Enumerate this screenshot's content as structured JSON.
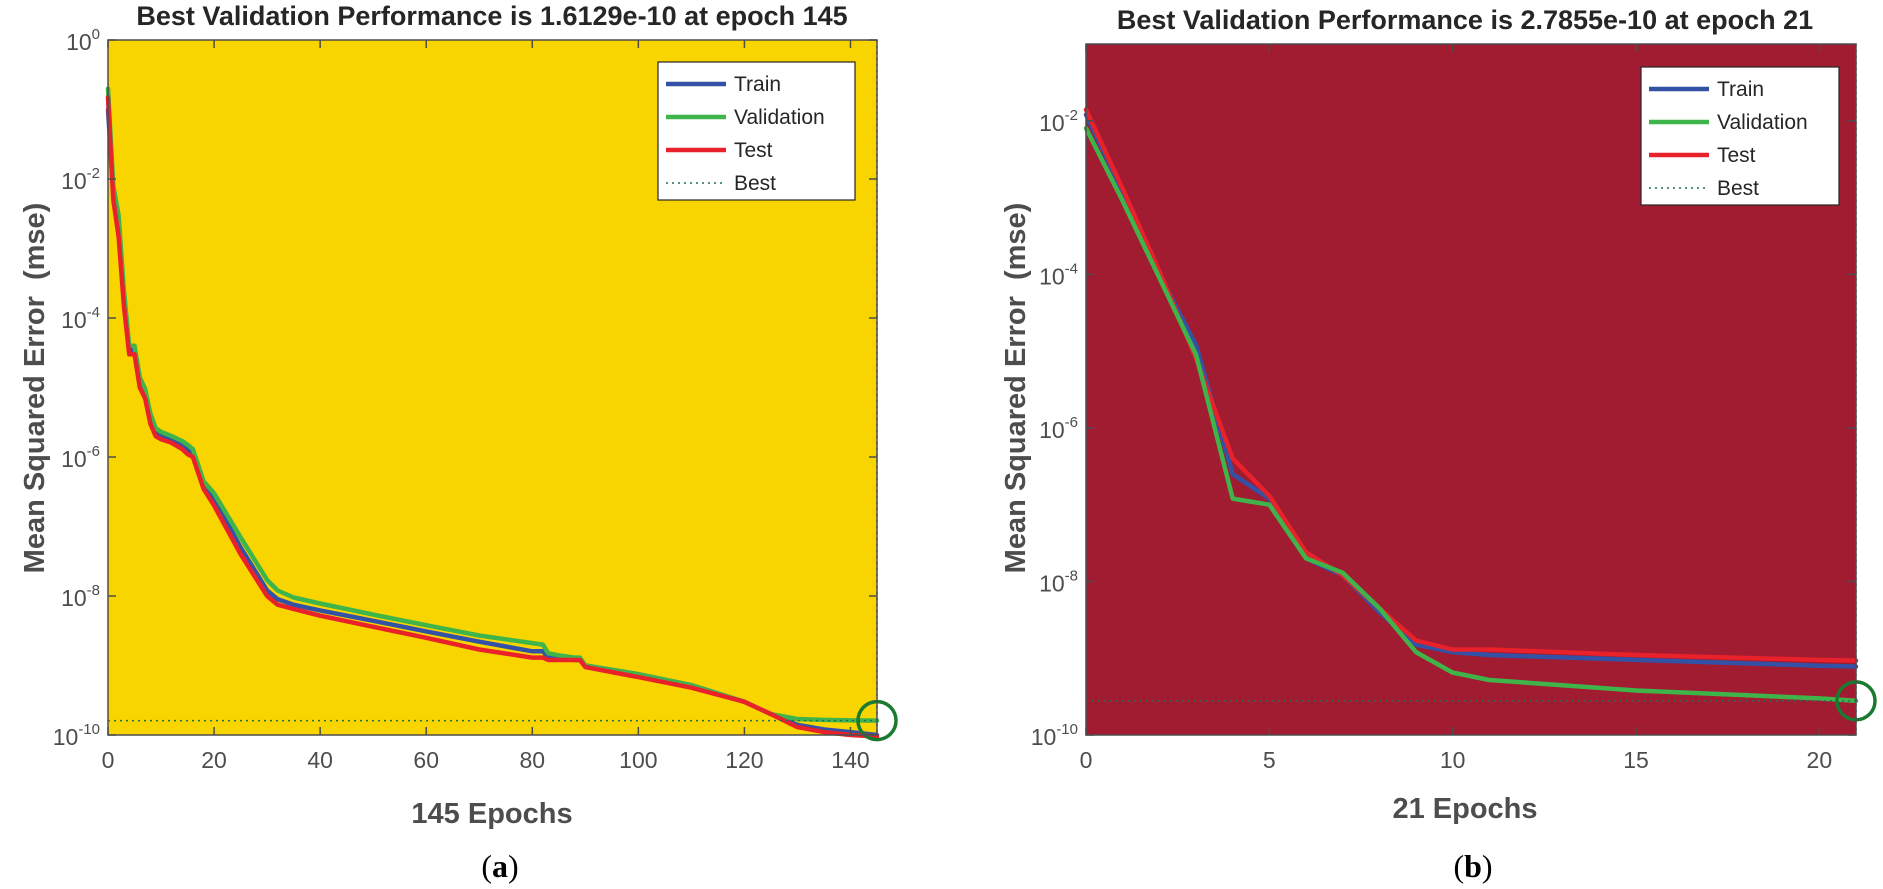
{
  "colors": {
    "train": "#3352a6",
    "validation": "#3fb44a",
    "test": "#e8212a",
    "best_marker": "#1a7a30",
    "axis": "#4d4d4d",
    "panel_a_bg": "#f9d500",
    "panel_b_bg": "#a11b31"
  },
  "legend": {
    "train": "Train",
    "validation": "Validation",
    "test": "Test",
    "best": "Best"
  },
  "chart_data": [
    {
      "type": "line",
      "caption_letter": "a",
      "title": "Best Validation Performance is 1.6129e-10 at epoch 145",
      "xlabel": "145 Epochs",
      "ylabel": "Mean Squared Error  (mse)",
      "yscale": "log",
      "xlim": [
        0,
        145
      ],
      "ylim_exp": [
        -10,
        0
      ],
      "xticks": [
        "0",
        "20",
        "40",
        "60",
        "80",
        "100",
        "120",
        "140"
      ],
      "xtick_values": [
        0,
        20,
        40,
        60,
        80,
        100,
        120,
        140
      ],
      "yticks_exp": [
        "0",
        "-2",
        "-4",
        "-6",
        "-8",
        "-10"
      ],
      "yticks_base": "10",
      "best": {
        "epoch": 145,
        "value": 1.6129e-10
      },
      "series": [
        {
          "name": "Train",
          "points": [
            [
              0,
              0.1
            ],
            [
              1,
              0.006
            ],
            [
              2,
              0.002
            ],
            [
              3,
              0.00018
            ],
            [
              4,
              3.5e-05
            ],
            [
              5,
              3.5e-05
            ],
            [
              6,
              1.2e-05
            ],
            [
              7,
              8e-06
            ],
            [
              8,
              3.5e-06
            ],
            [
              9,
              2.2e-06
            ],
            [
              10,
              2e-06
            ],
            [
              12,
              1.8e-06
            ],
            [
              14,
              1.5e-06
            ],
            [
              15,
              1.3e-06
            ],
            [
              16,
              1.1e-06
            ],
            [
              18,
              4e-07
            ],
            [
              20,
              2.5e-07
            ],
            [
              25,
              5e-08
            ],
            [
              30,
              1.2e-08
            ],
            [
              32,
              9e-09
            ],
            [
              35,
              7.5e-09
            ],
            [
              40,
              6.2e-09
            ],
            [
              50,
              4.4e-09
            ],
            [
              60,
              3.1e-09
            ],
            [
              70,
              2.2e-09
            ],
            [
              80,
              1.6e-09
            ],
            [
              82,
              1.6e-09
            ],
            [
              83,
              1.3e-09
            ],
            [
              85,
              1.3e-09
            ],
            [
              88,
              1.2e-09
            ],
            [
              89,
              1.2e-09
            ],
            [
              90,
              1e-09
            ],
            [
              100,
              7.5e-10
            ],
            [
              110,
              5.2e-10
            ],
            [
              120,
              3e-10
            ],
            [
              125,
              2e-10
            ],
            [
              130,
              1.4e-10
            ],
            [
              135,
              1.2e-10
            ],
            [
              140,
              1.1e-10
            ],
            [
              145,
              1e-10
            ]
          ]
        },
        {
          "name": "Validation",
          "points": [
            [
              0,
              0.2
            ],
            [
              1,
              0.008
            ],
            [
              2,
              0.003
            ],
            [
              3,
              0.00025
            ],
            [
              4,
              4e-05
            ],
            [
              5,
              4e-05
            ],
            [
              6,
              1.4e-05
            ],
            [
              7,
              9.5e-06
            ],
            [
              8,
              4.2e-06
            ],
            [
              9,
              2.6e-06
            ],
            [
              10,
              2.3e-06
            ],
            [
              12,
              2e-06
            ],
            [
              14,
              1.7e-06
            ],
            [
              15,
              1.5e-06
            ],
            [
              16,
              1.3e-06
            ],
            [
              18,
              4.5e-07
            ],
            [
              20,
              3e-07
            ],
            [
              25,
              7e-08
            ],
            [
              30,
              1.7e-08
            ],
            [
              32,
              1.2e-08
            ],
            [
              35,
              9.5e-09
            ],
            [
              40,
              7.8e-09
            ],
            [
              50,
              5.4e-09
            ],
            [
              60,
              3.8e-09
            ],
            [
              70,
              2.7e-09
            ],
            [
              80,
              2.1e-09
            ],
            [
              82,
              2e-09
            ],
            [
              83,
              1.5e-09
            ],
            [
              85,
              1.4e-09
            ],
            [
              88,
              1.3e-09
            ],
            [
              89,
              1.3e-09
            ],
            [
              90,
              1e-09
            ],
            [
              100,
              7.5e-10
            ],
            [
              110,
              5.2e-10
            ],
            [
              120,
              3e-10
            ],
            [
              125,
              2e-10
            ],
            [
              130,
              1.7e-10
            ],
            [
              135,
              1.65e-10
            ],
            [
              140,
              1.62e-10
            ],
            [
              145,
              1.6129e-10
            ]
          ]
        },
        {
          "name": "Test",
          "points": [
            [
              0,
              0.15
            ],
            [
              1,
              0.005
            ],
            [
              2,
              0.0015
            ],
            [
              3,
              0.00015
            ],
            [
              4,
              3e-05
            ],
            [
              5,
              3e-05
            ],
            [
              6,
              1e-05
            ],
            [
              7,
              7e-06
            ],
            [
              8,
              3e-06
            ],
            [
              9,
              2e-06
            ],
            [
              10,
              1.8e-06
            ],
            [
              12,
              1.6e-06
            ],
            [
              14,
              1.3e-06
            ],
            [
              15,
              1.1e-06
            ],
            [
              16,
              1e-06
            ],
            [
              18,
              3.5e-07
            ],
            [
              20,
              2e-07
            ],
            [
              25,
              4e-08
            ],
            [
              30,
              1e-08
            ],
            [
              32,
              7.5e-09
            ],
            [
              35,
              6.5e-09
            ],
            [
              40,
              5.2e-09
            ],
            [
              50,
              3.6e-09
            ],
            [
              60,
              2.5e-09
            ],
            [
              70,
              1.7e-09
            ],
            [
              80,
              1.3e-09
            ],
            [
              82,
              1.3e-09
            ],
            [
              83,
              1.2e-09
            ],
            [
              85,
              1.2e-09
            ],
            [
              88,
              1.2e-09
            ],
            [
              89,
              1.2e-09
            ],
            [
              90,
              9.5e-10
            ],
            [
              100,
              6.8e-10
            ],
            [
              110,
              4.8e-10
            ],
            [
              120,
              3e-10
            ],
            [
              125,
              2e-10
            ],
            [
              130,
              1.3e-10
            ],
            [
              135,
              1.1e-10
            ],
            [
              140,
              1e-10
            ],
            [
              145,
              9.5e-11
            ]
          ]
        }
      ]
    },
    {
      "type": "line",
      "caption_letter": "b",
      "title": "Best Validation Performance is 2.7855e-10 at epoch 21",
      "xlabel": "21 Epochs",
      "ylabel": "Mean Squared Error  (mse)",
      "yscale": "log",
      "xlim": [
        0,
        21
      ],
      "ylim_exp": [
        -10,
        -1
      ],
      "xticks": [
        "0",
        "5",
        "10",
        "15",
        "20"
      ],
      "xtick_values": [
        0,
        5,
        10,
        15,
        20
      ],
      "yticks_exp": [
        "-2",
        "-4",
        "-6",
        "-8",
        "-10"
      ],
      "yticks_base": "10",
      "best": {
        "epoch": 21,
        "value": 2.7855e-10
      },
      "series": [
        {
          "name": "Train",
          "points": [
            [
              0,
              0.012
            ],
            [
              1,
              0.0012
            ],
            [
              2,
              0.0001
            ],
            [
              3,
              1.2e-05
            ],
            [
              4,
              2.5e-07
            ],
            [
              5,
              1.2e-07
            ],
            [
              6,
              2e-08
            ],
            [
              7,
              1.2e-08
            ],
            [
              8,
              4e-09
            ],
            [
              9,
              1.5e-09
            ],
            [
              10,
              1.2e-09
            ],
            [
              11,
              1.1e-09
            ],
            [
              15,
              9.5e-10
            ],
            [
              20,
              8e-10
            ],
            [
              21,
              7.8e-10
            ]
          ]
        },
        {
          "name": "Validation",
          "points": [
            [
              0,
              0.008
            ],
            [
              1,
              0.0009
            ],
            [
              2,
              9e-05
            ],
            [
              3,
              9e-06
            ],
            [
              4,
              1.2e-07
            ],
            [
              5,
              1e-07
            ],
            [
              6,
              2e-08
            ],
            [
              7,
              1.3e-08
            ],
            [
              8,
              4.5e-09
            ],
            [
              9,
              1.2e-09
            ],
            [
              10,
              6.5e-10
            ],
            [
              11,
              5.2e-10
            ],
            [
              15,
              3.8e-10
            ],
            [
              20,
              3e-10
            ],
            [
              21,
              2.7855e-10
            ]
          ]
        },
        {
          "name": "Test",
          "points": [
            [
              0,
              0.014
            ],
            [
              1,
              0.0013
            ],
            [
              2,
              0.00011
            ],
            [
              3,
              8e-06
            ],
            [
              4,
              4e-07
            ],
            [
              5,
              1.3e-07
            ],
            [
              6,
              2.4e-08
            ],
            [
              7,
              1.2e-08
            ],
            [
              8,
              4.5e-09
            ],
            [
              9,
              1.7e-09
            ],
            [
              10,
              1.3e-09
            ],
            [
              11,
              1.3e-09
            ],
            [
              15,
              1.1e-09
            ],
            [
              20,
              9.5e-10
            ],
            [
              21,
              9.3e-10
            ]
          ]
        }
      ]
    }
  ]
}
